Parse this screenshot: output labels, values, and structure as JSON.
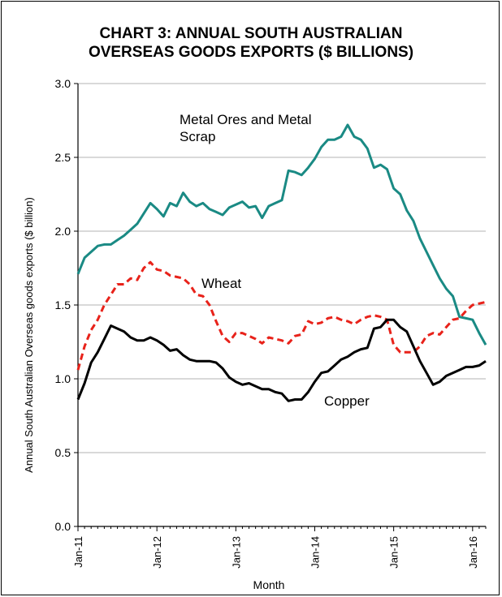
{
  "chart_data": {
    "type": "line",
    "title_line1": "CHART 3: ANNUAL SOUTH AUSTRALIAN",
    "title_line2": "OVERSEAS GOODS EXPORTS ($ BILLIONS)",
    "xlabel": "Month",
    "ylabel": "Annual South Australian Overseas  goods exports ($ billion)",
    "ylim": [
      0,
      3.0
    ],
    "yticks": [
      "0.0",
      "0.5",
      "1.0",
      "1.5",
      "2.0",
      "2.5",
      "3.0"
    ],
    "xticks": [
      "Jan-11",
      "Jan-12",
      "Jan-13",
      "Jan-14",
      "Jan-15",
      "Jan-16"
    ],
    "grid": "horizontal",
    "x_start": "Jan-11",
    "x_end": "Jan-16",
    "series": [
      {
        "name": "Metal Ores and Metal Scrap",
        "label_lines": [
          "Metal Ores and Metal",
          "Scrap"
        ],
        "color": "#1a8a84",
        "dash": "solid",
        "values": [
          1.71,
          1.82,
          1.86,
          1.9,
          1.91,
          1.91,
          1.94,
          1.97,
          2.01,
          2.05,
          2.12,
          2.19,
          2.15,
          2.1,
          2.19,
          2.17,
          2.26,
          2.2,
          2.17,
          2.19,
          2.15,
          2.13,
          2.11,
          2.16,
          2.18,
          2.2,
          2.16,
          2.17,
          2.09,
          2.17,
          2.19,
          2.21,
          2.41,
          2.4,
          2.38,
          2.43,
          2.49,
          2.57,
          2.62,
          2.62,
          2.64,
          2.72,
          2.64,
          2.62,
          2.56,
          2.43,
          2.45,
          2.42,
          2.29,
          2.25,
          2.14,
          2.07,
          1.95,
          1.86,
          1.77,
          1.68,
          1.61,
          1.56,
          1.42,
          1.41,
          1.4,
          1.31,
          1.23
        ]
      },
      {
        "name": "Wheat",
        "label_lines": [
          "Wheat"
        ],
        "color": "#e8221a",
        "dash": "dashed",
        "values": [
          1.06,
          1.22,
          1.33,
          1.4,
          1.5,
          1.57,
          1.64,
          1.64,
          1.68,
          1.67,
          1.75,
          1.79,
          1.74,
          1.73,
          1.7,
          1.69,
          1.68,
          1.64,
          1.57,
          1.56,
          1.5,
          1.39,
          1.29,
          1.25,
          1.31,
          1.31,
          1.29,
          1.27,
          1.24,
          1.28,
          1.27,
          1.26,
          1.24,
          1.29,
          1.3,
          1.39,
          1.37,
          1.38,
          1.41,
          1.42,
          1.4,
          1.39,
          1.37,
          1.4,
          1.42,
          1.43,
          1.42,
          1.4,
          1.23,
          1.18,
          1.18,
          1.18,
          1.22,
          1.29,
          1.31,
          1.3,
          1.35,
          1.4,
          1.41,
          1.46,
          1.5,
          1.51,
          1.52
        ]
      },
      {
        "name": "Copper",
        "label_lines": [
          "Copper"
        ],
        "color": "#000000",
        "dash": "solid",
        "values": [
          0.86,
          0.97,
          1.11,
          1.18,
          1.27,
          1.36,
          1.34,
          1.32,
          1.28,
          1.26,
          1.26,
          1.28,
          1.26,
          1.23,
          1.19,
          1.2,
          1.16,
          1.13,
          1.12,
          1.12,
          1.12,
          1.11,
          1.07,
          1.01,
          0.98,
          0.96,
          0.97,
          0.95,
          0.93,
          0.93,
          0.91,
          0.9,
          0.85,
          0.86,
          0.86,
          0.91,
          0.98,
          1.04,
          1.05,
          1.09,
          1.13,
          1.15,
          1.18,
          1.2,
          1.21,
          1.34,
          1.35,
          1.4,
          1.4,
          1.35,
          1.32,
          1.22,
          1.12,
          1.04,
          0.96,
          0.98,
          1.02,
          1.04,
          1.06,
          1.08,
          1.08,
          1.09,
          1.12
        ]
      }
    ]
  }
}
